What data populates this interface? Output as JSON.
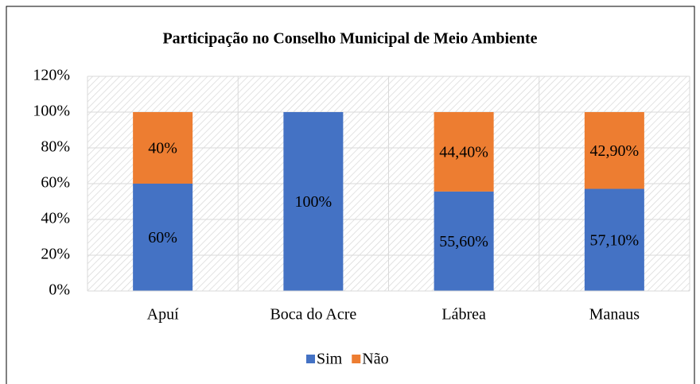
{
  "chart_data": {
    "type": "bar",
    "stacked": true,
    "title": "Participação no Conselho Municipal de Meio Ambiente",
    "categories": [
      "Apuí",
      "Boca do Acre",
      "Lábrea",
      "Manaus"
    ],
    "series": [
      {
        "name": "Sim",
        "color": "#4472c4",
        "values": [
          60,
          100,
          55.6,
          57.1
        ],
        "value_labels": [
          "60%",
          "100%",
          "55,60%",
          "57,10%"
        ]
      },
      {
        "name": "Não",
        "color": "#ed7d31",
        "values": [
          40,
          null,
          44.4,
          42.9
        ],
        "value_labels": [
          "40%",
          null,
          "44,40%",
          "42,90%"
        ]
      }
    ],
    "ylim": [
      0,
      120
    ],
    "yticks": [
      {
        "value": 0,
        "label": "0%"
      },
      {
        "value": 20,
        "label": "20%"
      },
      {
        "value": 40,
        "label": "40%"
      },
      {
        "value": 60,
        "label": "60%"
      },
      {
        "value": 80,
        "label": "80%"
      },
      {
        "value": 100,
        "label": "100%"
      },
      {
        "value": 120,
        "label": "120%"
      }
    ],
    "grid": true,
    "legend": "bottom"
  }
}
